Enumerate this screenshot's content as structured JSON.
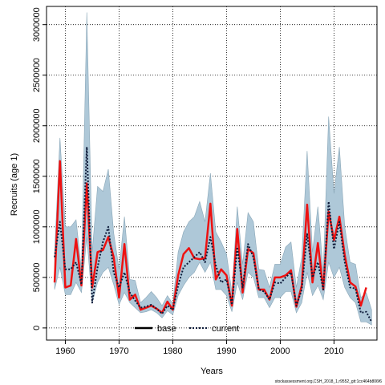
{
  "chart_data": {
    "type": "line",
    "xlabel": "Years",
    "ylabel": "Recruits (age 1)",
    "xlim": [
      1956.5,
      2018
    ],
    "ylim": [
      -120000,
      3180000
    ],
    "x_ticks": [
      1960,
      1970,
      1980,
      1990,
      2000,
      2010
    ],
    "x_tick_labels": [
      "1960",
      "1970",
      "1980",
      "1990",
      "2000",
      "2010"
    ],
    "y_ticks": [
      0,
      500000,
      1000000,
      1500000,
      2000000,
      2500000,
      3000000
    ],
    "y_tick_labels": [
      "0",
      "500000",
      "1000000",
      "1500000",
      "2000000",
      "2500000",
      "3000000"
    ],
    "grid": true,
    "legend_position": "bottom-center",
    "years": [
      1958,
      1959,
      1960,
      1961,
      1962,
      1963,
      1964,
      1965,
      1966,
      1967,
      1968,
      1969,
      1970,
      1971,
      1972,
      1973,
      1974,
      1975,
      1976,
      1977,
      1978,
      1979,
      1980,
      1981,
      1982,
      1983,
      1984,
      1985,
      1986,
      1987,
      1988,
      1989,
      1990,
      1991,
      1992,
      1993,
      1994,
      1995,
      1996,
      1997,
      1998,
      1999,
      2000,
      2001,
      2002,
      2003,
      2004,
      2005,
      2006,
      2007,
      2008,
      2009,
      2010,
      2011,
      2012,
      2013,
      2014,
      2015,
      2016,
      2017
    ],
    "series": [
      {
        "name": "base",
        "color": "#ee1111",
        "values": [
          450000,
          1650000,
          400000,
          420000,
          880000,
          420000,
          1430000,
          400000,
          750000,
          770000,
          900000,
          700000,
          300000,
          830000,
          280000,
          330000,
          180000,
          200000,
          220000,
          190000,
          150000,
          260000,
          180000,
          520000,
          730000,
          790000,
          690000,
          680000,
          690000,
          1230000,
          480000,
          580000,
          520000,
          220000,
          980000,
          350000,
          780000,
          740000,
          380000,
          380000,
          280000,
          500000,
          500000,
          520000,
          570000,
          210000,
          420000,
          1220000,
          450000,
          840000,
          380000,
          1150000,
          870000,
          1100000,
          720000,
          450000,
          410000,
          220000,
          400000,
          null
        ]
      },
      {
        "name": "current",
        "color": "#0d1b3a",
        "values": [
          700000,
          1050000,
          580000,
          580000,
          650000,
          430000,
          1790000,
          250000,
          600000,
          850000,
          1000000,
          550000,
          400000,
          550000,
          350000,
          270000,
          200000,
          210000,
          230000,
          190000,
          140000,
          220000,
          180000,
          420000,
          600000,
          650000,
          700000,
          750000,
          650000,
          900000,
          620000,
          450000,
          480000,
          230000,
          800000,
          400000,
          830000,
          700000,
          380000,
          360000,
          280000,
          450000,
          440000,
          500000,
          550000,
          220000,
          380000,
          930000,
          500000,
          650000,
          380000,
          1250000,
          780000,
          1050000,
          650000,
          400000,
          390000,
          150000,
          160000,
          60000
        ]
      }
    ],
    "confidence_band": {
      "color": "#aec8d8",
      "lower": [
        380000,
        600000,
        330000,
        330000,
        450000,
        350000,
        900000,
        250000,
        450000,
        550000,
        600000,
        430000,
        230000,
        350000,
        250000,
        200000,
        150000,
        160000,
        180000,
        150000,
        100000,
        170000,
        130000,
        320000,
        420000,
        500000,
        550000,
        650000,
        550000,
        650000,
        380000,
        380000,
        320000,
        160000,
        450000,
        280000,
        550000,
        500000,
        300000,
        300000,
        200000,
        300000,
        300000,
        360000,
        360000,
        150000,
        250000,
        550000,
        320000,
        420000,
        280000,
        650000,
        500000,
        600000,
        400000,
        300000,
        250000,
        60000,
        60000,
        30000
      ],
      "upper": [
        750000,
        1880000,
        1000000,
        1000000,
        1070000,
        570000,
        3120000,
        750000,
        1400000,
        1350000,
        1570000,
        940000,
        580000,
        1100000,
        480000,
        470000,
        250000,
        300000,
        360000,
        300000,
        220000,
        320000,
        240000,
        750000,
        950000,
        1050000,
        1100000,
        1250000,
        1050000,
        1530000,
        950000,
        850000,
        730000,
        350000,
        1200000,
        630000,
        1140000,
        1050000,
        580000,
        570000,
        400000,
        630000,
        630000,
        800000,
        850000,
        400000,
        700000,
        1750000,
        750000,
        1200000,
        560000,
        2090000,
        1330000,
        1790000,
        1000000,
        650000,
        630000,
        300000,
        350000,
        180000
      ]
    }
  },
  "legend": {
    "items": [
      {
        "label": "base",
        "style": "solid"
      },
      {
        "label": "current",
        "style": "dotted"
      }
    ]
  },
  "footer": {
    "text": "stockassessment.org,CSH_2018_1,r9552_git:1cc464b806f6"
  }
}
